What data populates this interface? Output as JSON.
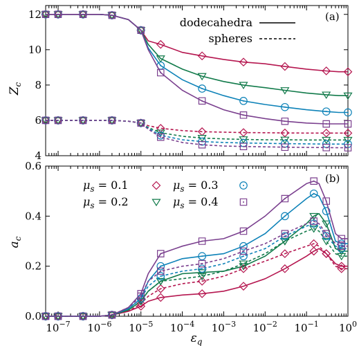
{
  "colors": {
    "mu_0_1": "#b5164f",
    "mu_0_2": "#117a4a",
    "mu_0_3": "#0d82b8",
    "mu_0_4": "#7a3f8e",
    "styles": {
      "dodecahedra": "solid",
      "spheres": "dashed"
    },
    "markers": {
      "mu_0_1": "diamond",
      "mu_0_2": "triangle-down",
      "mu_0_3": "circle",
      "mu_0_4": "square"
    }
  },
  "chart_data": [
    {
      "panel_label": "(a)",
      "type": "line",
      "xscale": "log",
      "xlim": [
        5e-08,
        1
      ],
      "ylim": [
        4,
        12.5
      ],
      "ylabel_sym": "Z",
      "ylabel_sub": "c",
      "yticks": [
        "4",
        "6",
        "8",
        "10",
        "12"
      ],
      "legend": {
        "position": "top-right",
        "entries": [
          "dodecahedra",
          "spheres"
        ]
      },
      "x": [
        5e-08,
        1e-07,
        2e-07,
        4e-07,
        1e-06,
        2e-06,
        5e-06,
        1e-05,
        1.5e-05,
        3e-05,
        0.0001,
        0.0003,
        0.001,
        0.003,
        0.01,
        0.03,
        0.1,
        0.3,
        0.6,
        1
      ],
      "series": [
        {
          "mu": "0.1",
          "shape": "dodecahedra",
          "values": [
            12,
            12,
            12,
            12,
            12,
            11.95,
            11.7,
            11.1,
            10.5,
            10.3,
            9.85,
            9.65,
            9.45,
            9.3,
            9.2,
            9.05,
            8.9,
            8.8,
            8.75,
            8.75
          ]
        },
        {
          "mu": "0.2",
          "shape": "dodecahedra",
          "values": [
            12,
            12,
            12,
            12,
            12,
            11.95,
            11.7,
            11.1,
            10.3,
            9.5,
            8.9,
            8.5,
            8.2,
            8,
            7.85,
            7.7,
            7.55,
            7.45,
            7.4,
            7.4
          ]
        },
        {
          "mu": "0.3",
          "shape": "dodecahedra",
          "values": [
            12,
            12,
            12,
            12,
            12,
            11.95,
            11.7,
            11.1,
            10.1,
            9.1,
            8.3,
            7.8,
            7.4,
            7.1,
            6.9,
            6.75,
            6.6,
            6.5,
            6.45,
            6.45
          ]
        },
        {
          "mu": "0.4",
          "shape": "dodecahedra",
          "values": [
            12,
            12,
            12,
            12,
            12,
            11.95,
            11.7,
            11.1,
            10,
            8.7,
            7.7,
            7.1,
            6.6,
            6.3,
            6.1,
            5.95,
            5.85,
            5.8,
            5.8,
            5.8
          ]
        },
        {
          "mu": "0.1",
          "shape": "spheres",
          "values": [
            6,
            6,
            6,
            6,
            6,
            6,
            5.95,
            5.85,
            5.7,
            5.55,
            5.42,
            5.36,
            5.33,
            5.31,
            5.3,
            5.29,
            5.28,
            5.28,
            5.28,
            5.28
          ]
        },
        {
          "mu": "0.2",
          "shape": "spheres",
          "values": [
            6,
            6,
            6,
            6,
            6,
            6,
            5.95,
            5.85,
            5.6,
            5.3,
            5.1,
            5,
            4.95,
            4.92,
            4.9,
            4.9,
            4.89,
            4.89,
            4.89,
            4.89
          ]
        },
        {
          "mu": "0.3",
          "shape": "spheres",
          "values": [
            6,
            6,
            6,
            6,
            6,
            6,
            5.95,
            5.85,
            5.55,
            5.15,
            4.9,
            4.8,
            4.75,
            4.72,
            4.7,
            4.68,
            4.67,
            4.66,
            4.66,
            4.66
          ]
        },
        {
          "mu": "0.4",
          "shape": "spheres",
          "values": [
            6,
            6,
            6,
            6,
            6,
            6,
            5.95,
            5.85,
            5.5,
            5.05,
            4.75,
            4.62,
            4.55,
            4.52,
            4.5,
            4.48,
            4.47,
            4.46,
            4.45,
            4.45
          ]
        }
      ]
    },
    {
      "panel_label": "(b)",
      "type": "line",
      "xscale": "log",
      "xlim": [
        5e-08,
        1
      ],
      "ylim": [
        0,
        0.6
      ],
      "ylabel_sym": "a",
      "ylabel_sub": "c",
      "xlabel_sym": "ε",
      "xlabel_sub": "q",
      "yticks": [
        "0.0",
        "0.2",
        "0.4",
        "0.6"
      ],
      "xticks": [
        {
          "value": 1e-07,
          "base": "10",
          "exp": "−7"
        },
        {
          "value": 1e-06,
          "base": "10",
          "exp": "−6"
        },
        {
          "value": 1e-05,
          "base": "10",
          "exp": "−5"
        },
        {
          "value": 0.0001,
          "base": "10",
          "exp": "−4"
        },
        {
          "value": 0.001,
          "base": "10",
          "exp": "−3"
        },
        {
          "value": 0.01,
          "base": "10",
          "exp": "−2"
        },
        {
          "value": 0.1,
          "base": "10",
          "exp": "−1"
        },
        {
          "value": 1,
          "base": "10",
          "exp": "0"
        }
      ],
      "legend": {
        "position": "top-left",
        "entries": [
          {
            "sym": "μ",
            "sub": "s",
            "rhs": " = 0.1"
          },
          {
            "sym": "μ",
            "sub": "s",
            "rhs": " = 0.2"
          },
          {
            "sym": "μ",
            "sub": "s",
            "rhs": " = 0.3"
          },
          {
            "sym": "μ",
            "sub": "s",
            "rhs": " = 0.4"
          }
        ]
      },
      "x": [
        5e-08,
        1e-07,
        2e-07,
        4e-07,
        1e-06,
        2e-06,
        5e-06,
        1e-05,
        1.5e-05,
        3e-05,
        0.0001,
        0.0003,
        0.001,
        0.003,
        0.01,
        0.03,
        0.1,
        0.15,
        0.2,
        0.3,
        0.5,
        0.7,
        1
      ],
      "series": [
        {
          "mu": "0.1",
          "shape": "dodecahedra",
          "values": [
            0,
            0,
            0,
            0,
            0,
            0.005,
            0.02,
            0.04,
            0.06,
            0.075,
            0.085,
            0.09,
            0.1,
            0.12,
            0.15,
            0.19,
            0.24,
            0.26,
            0.27,
            0.25,
            0.21,
            0.2,
            0.2
          ]
        },
        {
          "mu": "0.2",
          "shape": "dodecahedra",
          "values": [
            0,
            0,
            0,
            0,
            0,
            0.005,
            0.025,
            0.06,
            0.1,
            0.14,
            0.17,
            0.175,
            0.18,
            0.2,
            0.24,
            0.3,
            0.37,
            0.4,
            0.41,
            0.37,
            0.27,
            0.26,
            0.26
          ]
        },
        {
          "mu": "0.3",
          "shape": "dodecahedra",
          "values": [
            0,
            0,
            0,
            0,
            0,
            0.005,
            0.03,
            0.07,
            0.14,
            0.2,
            0.23,
            0.24,
            0.25,
            0.28,
            0.33,
            0.4,
            0.47,
            0.49,
            0.48,
            0.42,
            0.3,
            0.29,
            0.29
          ]
        },
        {
          "mu": "0.4",
          "shape": "dodecahedra",
          "values": [
            0,
            0,
            0,
            0,
            0,
            0.005,
            0.035,
            0.09,
            0.17,
            0.25,
            0.28,
            0.3,
            0.31,
            0.34,
            0.4,
            0.47,
            0.53,
            0.54,
            0.53,
            0.46,
            0.33,
            0.31,
            0.31
          ]
        },
        {
          "mu": "0.1",
          "shape": "spheres",
          "values": [
            0,
            0,
            0,
            0,
            0,
            0.005,
            0.02,
            0.05,
            0.08,
            0.11,
            0.13,
            0.14,
            0.16,
            0.19,
            0.22,
            0.25,
            0.28,
            0.29,
            0.28,
            0.25,
            0.2,
            0.19,
            0.19
          ]
        },
        {
          "mu": "0.2",
          "shape": "spheres",
          "values": [
            0,
            0,
            0,
            0,
            0,
            0.005,
            0.025,
            0.06,
            0.1,
            0.14,
            0.15,
            0.16,
            0.18,
            0.21,
            0.25,
            0.3,
            0.34,
            0.35,
            0.34,
            0.3,
            0.25,
            0.24,
            0.24
          ]
        },
        {
          "mu": "0.3",
          "shape": "spheres",
          "values": [
            0,
            0,
            0,
            0,
            0,
            0.005,
            0.03,
            0.07,
            0.12,
            0.16,
            0.18,
            0.19,
            0.21,
            0.24,
            0.27,
            0.32,
            0.36,
            0.37,
            0.36,
            0.32,
            0.28,
            0.27,
            0.27
          ]
        },
        {
          "mu": "0.4",
          "shape": "spheres",
          "values": [
            0,
            0,
            0,
            0,
            0,
            0.005,
            0.035,
            0.08,
            0.14,
            0.18,
            0.2,
            0.21,
            0.23,
            0.26,
            0.29,
            0.33,
            0.37,
            0.38,
            0.37,
            0.33,
            0.29,
            0.28,
            0.28
          ]
        }
      ]
    }
  ]
}
